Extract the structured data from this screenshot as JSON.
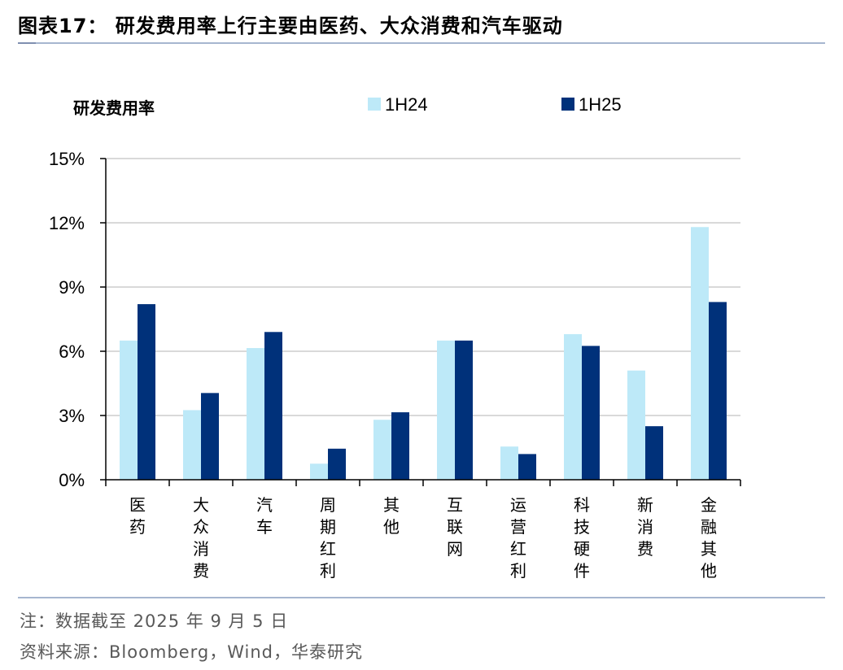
{
  "figure": {
    "title": "图表17：  研发费用率上行主要由医药、大众消费和汽车驱动",
    "note": "注：数据截至 2025 年 9 月 5 日",
    "source": "资料来源：Bloomberg，Wind，华泰研究"
  },
  "colors": {
    "series_1H24": "#bde9f8",
    "series_1H25": "#00317a",
    "gridline": "#d9d9d9",
    "axis": "#000000",
    "rule": "#a6b6cf"
  },
  "chart_data": {
    "type": "bar",
    "title": "",
    "ylabel": "研发费用率",
    "xlabel": "",
    "ylim": [
      0,
      15
    ],
    "yticks": [
      0,
      3,
      6,
      9,
      12,
      15
    ],
    "ytick_labels": [
      "0%",
      "3%",
      "6%",
      "9%",
      "12%",
      "15%"
    ],
    "grid": true,
    "legend": "top",
    "categories": [
      "医药",
      "大众消费",
      "汽车",
      "周期红利",
      "其他",
      "互联网",
      "运营红利",
      "科技硬件",
      "新消费",
      "金融其他"
    ],
    "series": [
      {
        "name": "1H24",
        "values": [
          6.5,
          3.25,
          6.15,
          0.75,
          2.8,
          6.5,
          1.55,
          6.8,
          5.1,
          11.8
        ]
      },
      {
        "name": "1H25",
        "values": [
          8.2,
          4.05,
          6.9,
          1.45,
          3.15,
          6.5,
          1.2,
          6.25,
          2.5,
          8.3
        ]
      }
    ]
  }
}
